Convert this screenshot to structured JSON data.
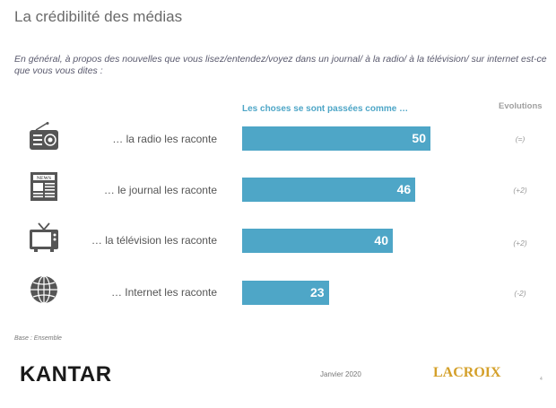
{
  "title": "La crédibilité des médias",
  "question": "En général, à propos des nouvelles que vous lisez/entendez/voyez dans un journal/ à la radio/ à la télévision/ sur internet est-ce que vous vous dites :",
  "evolutions_header": "Evolutions",
  "base": "Base : Ensemble",
  "footer": {
    "logo_left": "KANTAR",
    "date": "Janvier 2020",
    "logo_right": "LACROIX",
    "page": "4"
  },
  "colors": {
    "bar": "#4ea6c7",
    "icon": "#555555",
    "header": "#4ea6c7"
  },
  "icons": [
    "radio-icon",
    "newspaper-icon",
    "television-icon",
    "globe-icon"
  ],
  "chart_data": {
    "type": "bar",
    "orientation": "horizontal",
    "title": "Les choses se sont passées comme …",
    "categories": [
      "… la radio les raconte",
      "… le journal les raconte",
      "… la télévision les raconte",
      "… Internet les raconte"
    ],
    "values": [
      50,
      46,
      40,
      23
    ],
    "evolutions": [
      "(=)",
      "(+2)",
      "(+2)",
      "(-2)"
    ],
    "xlim": [
      0,
      100
    ],
    "grid": false,
    "legend": "none"
  }
}
